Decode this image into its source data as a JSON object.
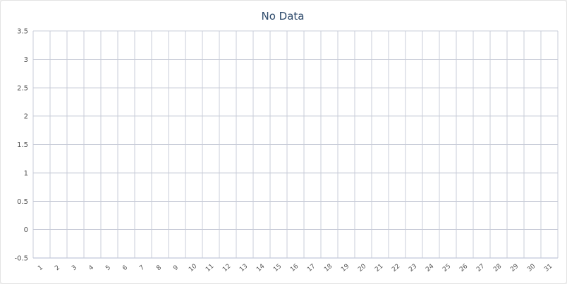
{
  "chart_data": {
    "type": "bar",
    "title": "No Data",
    "xlabel": "",
    "ylabel": "",
    "categories": [
      "1",
      "2",
      "3",
      "4",
      "5",
      "6",
      "7",
      "8",
      "9",
      "10",
      "11",
      "12",
      "13",
      "14",
      "15",
      "16",
      "17",
      "18",
      "19",
      "20",
      "21",
      "22",
      "23",
      "24",
      "25",
      "26",
      "27",
      "28",
      "29",
      "30",
      "31"
    ],
    "series": [],
    "ylim": [
      -0.5,
      3.5
    ],
    "y_ticks": [
      "-0.5",
      "0",
      "0.5",
      "1",
      "1.5",
      "2",
      "2.5",
      "3",
      "3.5"
    ],
    "grid": true,
    "legend": "none",
    "colors": {
      "title": "#2e4a6b",
      "grid": "#c8ccd8",
      "axis": "#b0b8d0",
      "tick_text": "#555555",
      "background": "#ffffff"
    }
  }
}
